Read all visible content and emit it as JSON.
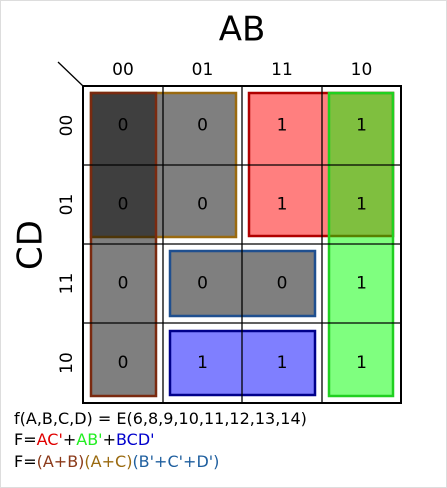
{
  "map": {
    "title": "AB",
    "side_label": "CD",
    "columns": [
      "00",
      "01",
      "11",
      "10"
    ],
    "rows": [
      "00",
      "01",
      "11",
      "10"
    ],
    "cells": [
      [
        "0",
        "0",
        "1",
        "1"
      ],
      [
        "0",
        "0",
        "1",
        "1"
      ],
      [
        "0",
        "0",
        "0",
        "1"
      ],
      [
        "0",
        "1",
        "1",
        "1"
      ]
    ]
  },
  "formulas": [
    [
      "f(A,B,C,D) = E(6,8,9,10,11,12,13,14)"
    ],
    [
      "F=",
      "AC'",
      "+",
      "AB'",
      "+",
      "BCD'"
    ],
    [
      "F=",
      "(A+B)",
      "(A+C)",
      "(B'+C'+D')"
    ]
  ]
}
